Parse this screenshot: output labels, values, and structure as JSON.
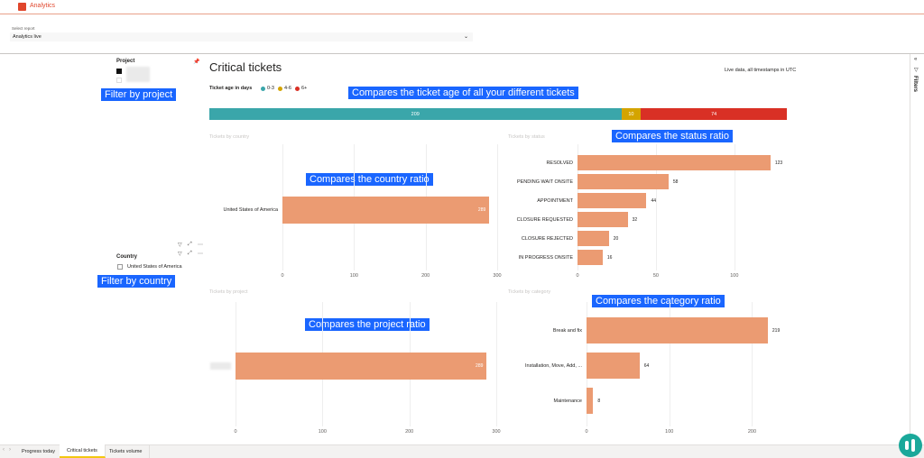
{
  "app": {
    "title": "Analytics"
  },
  "report_selector": {
    "label": "Select report",
    "value": "Analytics live"
  },
  "report": {
    "title": "Critical tickets",
    "live_note": "Live data, all timestamps in UTC"
  },
  "side_panel": {
    "label": "Filters",
    "collapse_glyph": "«",
    "filter_glyph": "▽"
  },
  "age_legend": {
    "title": "Ticket age in days",
    "items": [
      {
        "label": "0-3",
        "color": "#3aa6aa"
      },
      {
        "label": "4-6",
        "color": "#d4a400"
      },
      {
        "label": "6+",
        "color": "#d93025"
      }
    ]
  },
  "project_slicer": {
    "title": "Project",
    "pin_glyph": "📌"
  },
  "country_slicer": {
    "title": "Country",
    "items": [
      "United States of America"
    ]
  },
  "visual_header_icons": [
    "▽",
    "⤢",
    "⋯"
  ],
  "annotations": {
    "filter_project": "Filter by project",
    "ticket_age": "Compares the ticket age of all your different tickets",
    "status_ratio": "Compares the status ratio",
    "country_ratio": "Compares the country ratio",
    "filter_country": "Filter by country",
    "project_ratio": "Compares the project ratio",
    "category_ratio": "Compares the category ratio"
  },
  "chart_data": [
    {
      "type": "bar",
      "orientation": "horizontal-stacked",
      "title": "Ticket age in days",
      "series": [
        {
          "name": "0-3",
          "values": [
            209
          ],
          "color": "#3aa6aa"
        },
        {
          "name": "4-6",
          "values": [
            10
          ],
          "color": "#d4a400"
        },
        {
          "name": "6+",
          "values": [
            74
          ],
          "color": "#d93025"
        }
      ]
    },
    {
      "type": "bar",
      "orientation": "horizontal",
      "title": "Tickets by country",
      "categories": [
        "United States of America"
      ],
      "values": [
        289
      ],
      "xlim": [
        0,
        300
      ],
      "xticks": [
        "0",
        "100",
        "200",
        "300"
      ]
    },
    {
      "type": "bar",
      "orientation": "horizontal",
      "title": "Tickets by status",
      "categories": [
        "RESOLVED",
        "PENDING WAIT ONSITE",
        "APPOINTMENT",
        "CLOSURE REQUESTED",
        "CLOSURE REJECTED",
        "IN PROGRESS ONSITE"
      ],
      "values": [
        123,
        58,
        44,
        32,
        20,
        16
      ],
      "xlim": [
        0,
        130
      ],
      "xticks": [
        "0",
        "50",
        "100"
      ]
    },
    {
      "type": "bar",
      "orientation": "horizontal",
      "title": "Tickets by project",
      "categories": [
        ""
      ],
      "values": [
        289
      ],
      "xlim": [
        0,
        300
      ],
      "xticks": [
        "0",
        "100",
        "200",
        "300"
      ]
    },
    {
      "type": "bar",
      "orientation": "horizontal",
      "title": "Tickets by category",
      "categories": [
        "Break and fix",
        "Installation, Move, Add, ...",
        "Maintenance"
      ],
      "values": [
        219,
        64,
        8
      ],
      "xlim": [
        0,
        230
      ],
      "xticks": [
        "0",
        "100",
        "200"
      ]
    }
  ],
  "tabs": [
    "Progress today",
    "Critical tickets",
    "Tickets volume"
  ],
  "active_tab": "Critical tickets",
  "nav_arrows": [
    "‹",
    "›"
  ]
}
